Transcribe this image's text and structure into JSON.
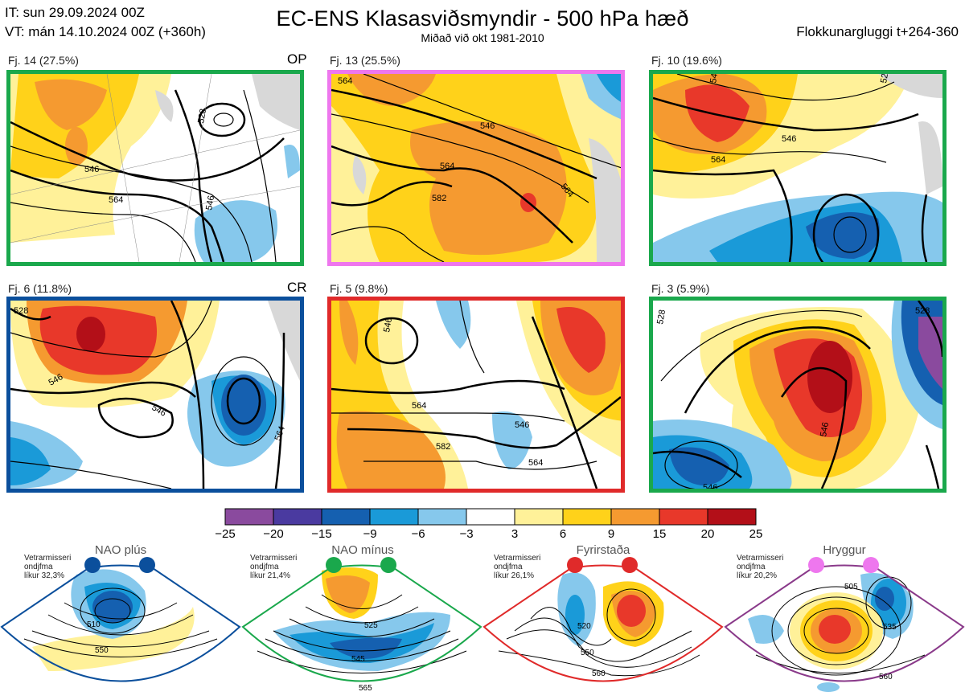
{
  "header": {
    "it_line": "IT: sun 29.09.2024 00Z",
    "vt_line": "VT: mán 14.10.2024 00Z  (+360h)",
    "title": "EC-ENS Klasasviðsmyndir - 500 hPa hæð",
    "subtitle": "Miðað við okt 1981-2010",
    "window": "Flokkunargluggi t+264-360"
  },
  "panels": [
    {
      "label": "Fj. 14 (27.5%)",
      "tag": "OP",
      "border": "#1aa84c",
      "contours": [
        "528",
        "546",
        "564",
        "546"
      ]
    },
    {
      "label": "Fj. 13 (25.5%)",
      "tag": "",
      "border": "#ee77ee",
      "contours": [
        "564",
        "546",
        "564",
        "582",
        "564"
      ]
    },
    {
      "label": "Fj. 10 (19.6%)",
      "tag": "",
      "border": "#1aa84c",
      "contours": [
        "546",
        "564",
        "546",
        "528"
      ]
    },
    {
      "label": "Fj. 6 (11.8%)",
      "tag": "CR",
      "border": "#0b4f9c",
      "contours": [
        "528",
        "546",
        "546",
        "564"
      ]
    },
    {
      "label": "Fj. 5 (9.8%)",
      "tag": "",
      "border": "#e02a2a",
      "contours": [
        "546",
        "564",
        "582",
        "546",
        "564"
      ]
    },
    {
      "label": "Fj. 3 (5.9%)",
      "tag": "",
      "border": "#1aa84c",
      "contours": [
        "528",
        "546",
        "546",
        "528"
      ]
    }
  ],
  "colorbar": {
    "ticks": [
      "−25",
      "−20",
      "−15",
      "−9",
      "−6",
      "−3",
      "3",
      "6",
      "9",
      "15",
      "20",
      "25"
    ],
    "colors": [
      "#8a4a9e",
      "#4a3aa0",
      "#1560b0",
      "#1a9ad8",
      "#86c8ec",
      "#ffffff",
      "#fff199",
      "#ffd21a",
      "#f59a30",
      "#e8382a",
      "#b30f18"
    ]
  },
  "regimes": [
    {
      "title": "NAO plús",
      "note": [
        "Vetrarmisseri",
        "ondjfma",
        "líkur 32,3%"
      ],
      "color": "#0b4f9c",
      "contours": [
        "510",
        "550"
      ]
    },
    {
      "title": "NAO mínus",
      "note": [
        "Vetrarmisseri",
        "ondjfma",
        "líkur 21,4%"
      ],
      "color": "#1aa84c",
      "contours": [
        "525",
        "545",
        "565"
      ]
    },
    {
      "title": "Fyrirstaða",
      "note": [
        "Vetrarmisseri",
        "ondjfma",
        "líkur 26,1%"
      ],
      "color": "#e02a2a",
      "contours": [
        "520",
        "550",
        "560"
      ]
    },
    {
      "title": "Hryggur",
      "note": [
        "Vetrarmisseri",
        "ondjfma",
        "líkur 20,2%"
      ],
      "color": "#ee77ee",
      "contours": [
        "505",
        "535",
        "560"
      ]
    }
  ]
}
